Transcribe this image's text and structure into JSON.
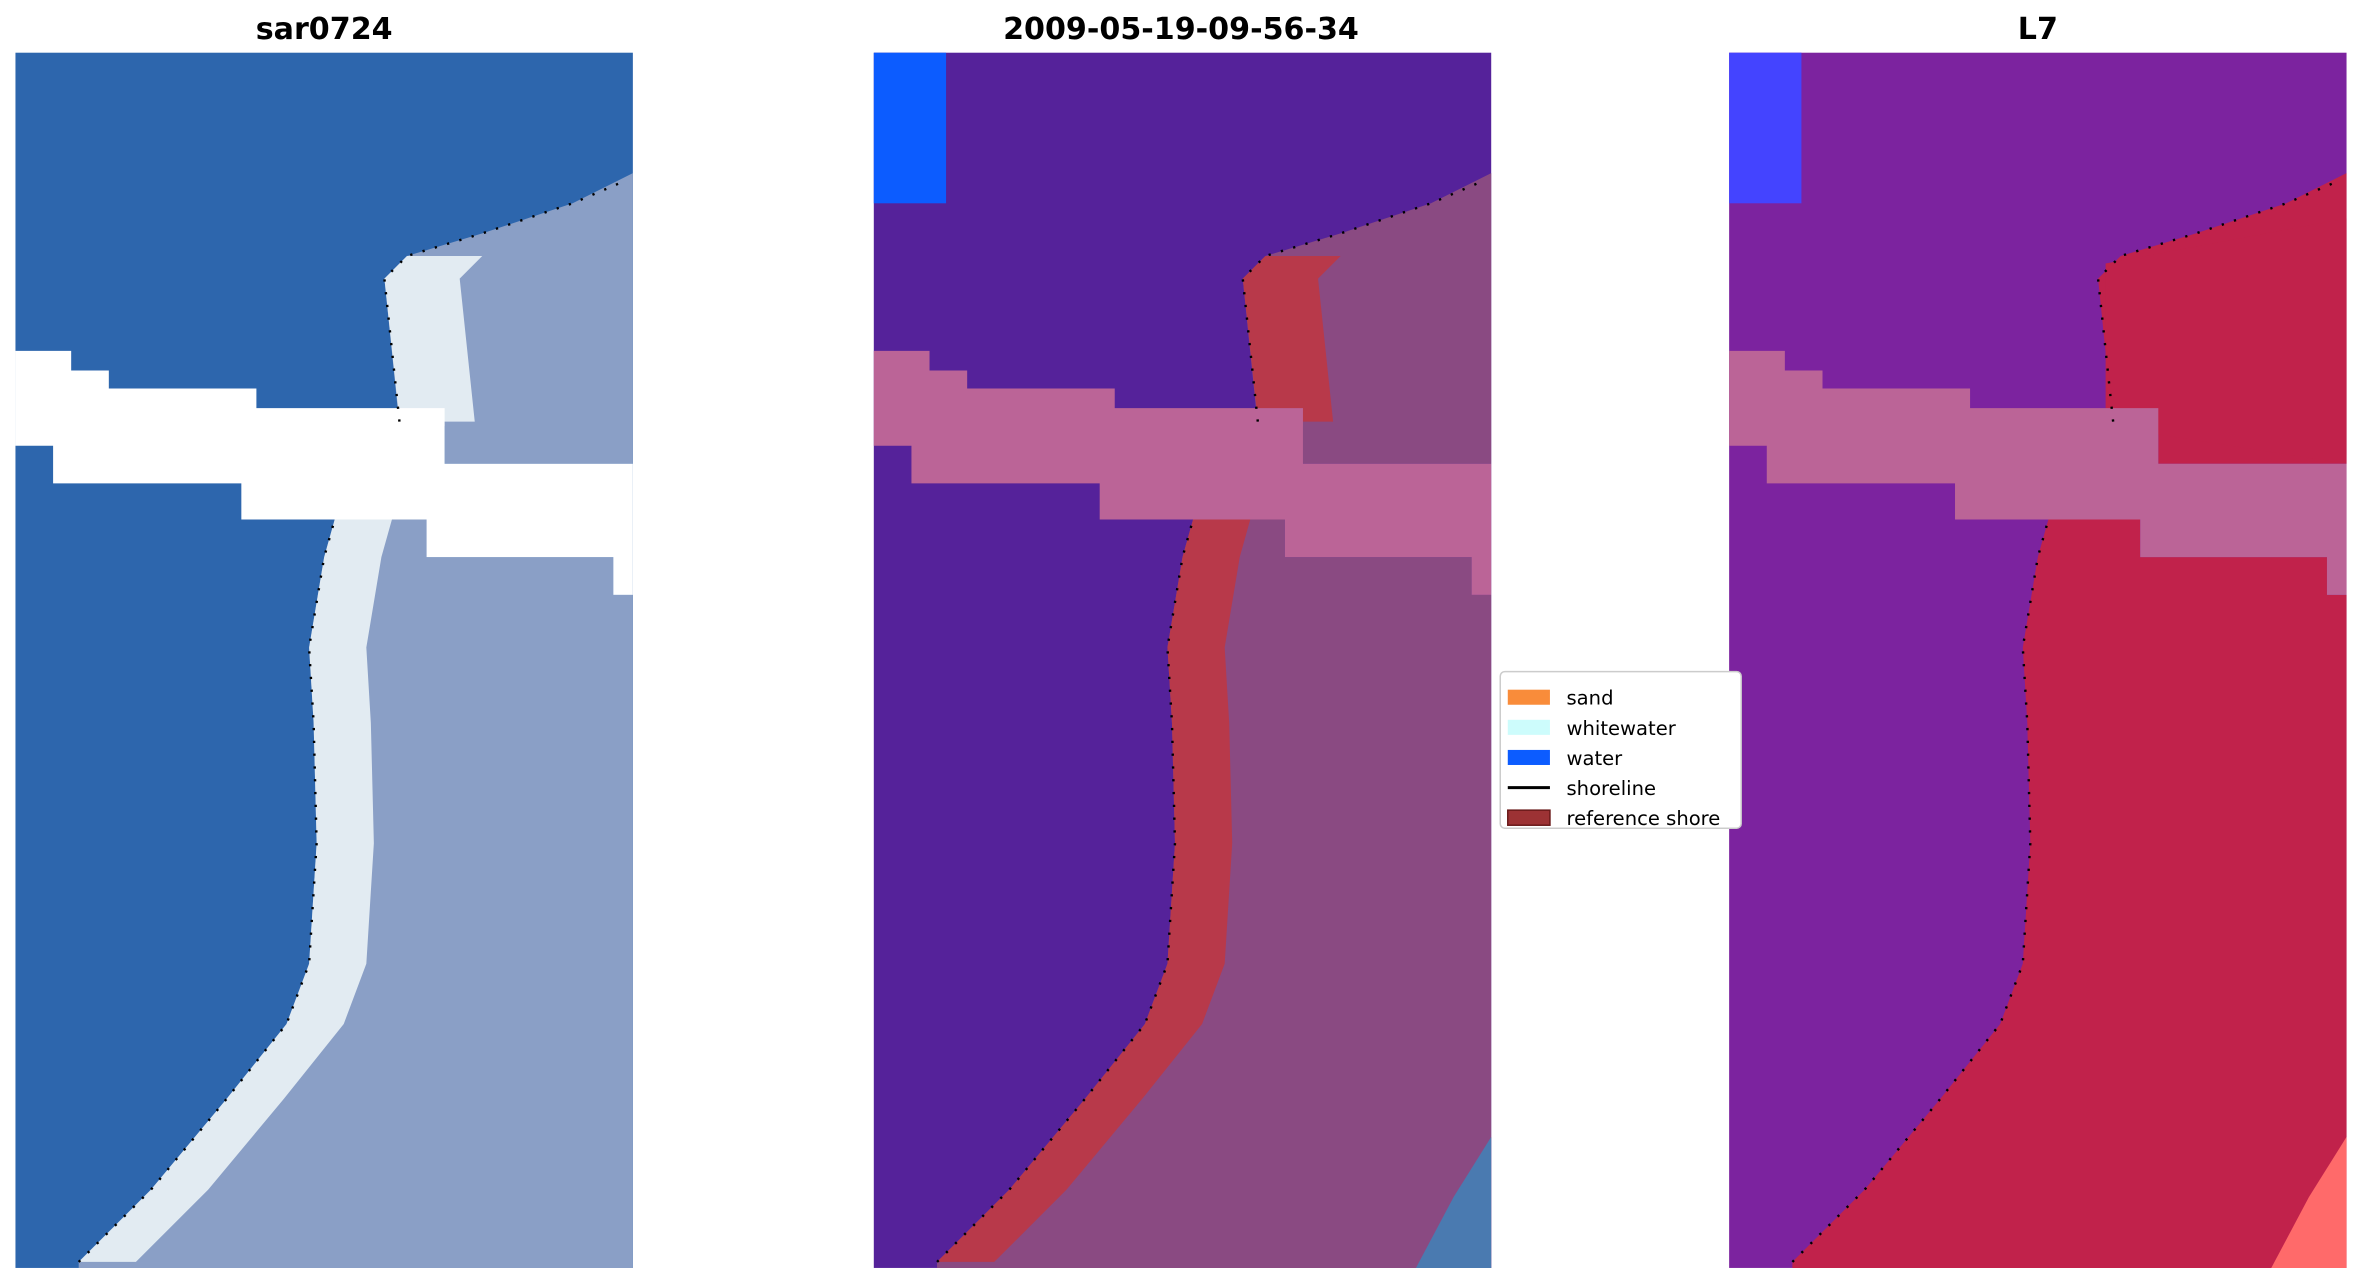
{
  "chart_data": {
    "type": "image-panels",
    "panels": [
      {
        "title": "sar0724",
        "kind": "rgb"
      },
      {
        "title": "2009-05-19-09-56-34",
        "kind": "classified"
      },
      {
        "title": "L7",
        "kind": "false-color"
      }
    ],
    "legend": {
      "placement": "center-right",
      "entries": [
        {
          "label": "sand",
          "color": "#f98c3a",
          "type": "patch"
        },
        {
          "label": "whitewater",
          "color": "#cdfcfc",
          "type": "patch"
        },
        {
          "label": "water",
          "color": "#0c5cff",
          "type": "patch"
        },
        {
          "label": "shoreline",
          "color": "#000000",
          "type": "line"
        },
        {
          "label": "reference shore",
          "color": "#9c3234",
          "type": "patch"
        }
      ]
    },
    "colors": {
      "rgb": {
        "water": "#2d66ad",
        "land": "#8a9fc6",
        "strip": "#e2ebf2",
        "nodata": "#ffffff",
        "corner": "#2d66ad"
      },
      "classified": {
        "water": "#55229a",
        "land": "#8a4a82",
        "strip": "#b8394a",
        "nodata": "#bb6497",
        "corner": "#0c5cff"
      },
      "false-color": {
        "water": "#7c239f",
        "land": "#c1224b",
        "strip": "#c1224b",
        "nodata": "#bb6497",
        "corner": "#4444ff"
      }
    }
  }
}
